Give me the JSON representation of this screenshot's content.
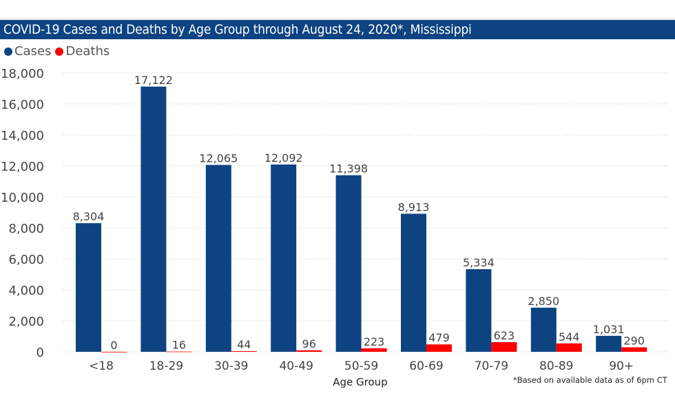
{
  "title": "COVID-19 Cases and Deaths by Age Group through August 24, 2020*, Mississippi",
  "footnote": "*Based on available data as of 6pm CT",
  "chart_data": {
    "type": "bar",
    "title": "COVID-19 Cases and Deaths by Age Group through August 24, 2020*, Mississippi",
    "xlabel": "Age Group",
    "ylabel": "",
    "ylim": [
      0,
      18000
    ],
    "yticks": [
      "0",
      "2,000",
      "4,000",
      "6,000",
      "8,000",
      "10,000",
      "12,000",
      "14,000",
      "16,000",
      "18,000"
    ],
    "grid": true,
    "legend": "top-left",
    "categories": [
      "<18",
      "18-29",
      "30-39",
      "40-49",
      "50-59",
      "60-69",
      "70-79",
      "80-89",
      "90+"
    ],
    "series": [
      {
        "name": "Cases",
        "color": "#0e4382",
        "values": [
          8304,
          17122,
          12065,
          12092,
          11398,
          8913,
          5334,
          2850,
          1031
        ],
        "labels": [
          "8,304",
          "17,122",
          "12,065",
          "12,092",
          "11,398",
          "8,913",
          "5,334",
          "2,850",
          "1,031"
        ]
      },
      {
        "name": "Deaths",
        "color": "#ff0000",
        "values": [
          0,
          16,
          44,
          96,
          223,
          479,
          623,
          544,
          290
        ],
        "labels": [
          "0",
          "16",
          "44",
          "96",
          "223",
          "479",
          "623",
          "544",
          "290"
        ]
      }
    ]
  }
}
